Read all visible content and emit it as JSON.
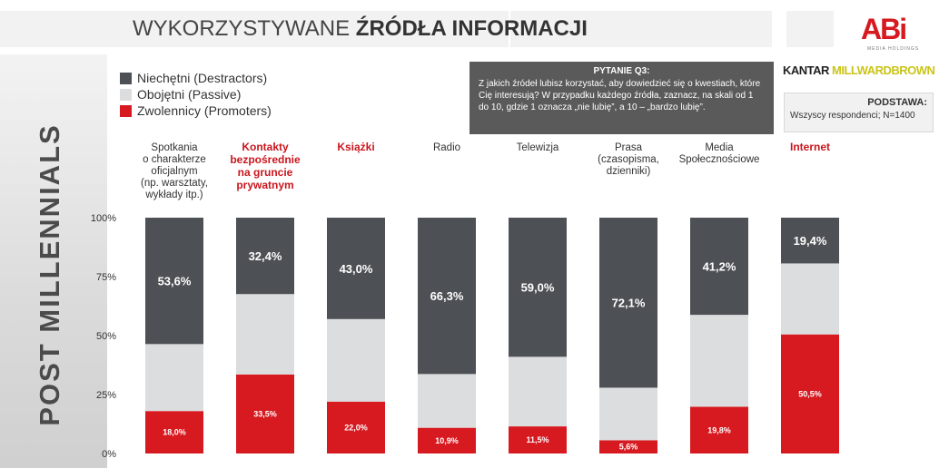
{
  "header": {
    "title_normal": "WYKORZYSTYWANE",
    "title_bold": "ŹRÓDŁA INFORMACJI"
  },
  "logos": {
    "abi": "ABi",
    "abi_sub": "MEDIA HOLDINGS",
    "kantar_a": "KANTAR",
    "kantar_b": "MILLWARDBROWN"
  },
  "side_label": "POST MILLENNIALS",
  "question": {
    "heading": "PYTANIE Q3:",
    "text": "Z jakich źródeł lubisz korzystać, aby dowiedzieć się o kwestiach, które Cię interesują? W przypadku każdego źródła, zaznacz, na skali od 1 do 10, gdzie 1 oznacza „nie lubię”, a 10 – „bardzo lubię”."
  },
  "base": {
    "heading": "PODSTAWA:",
    "text": "Wszyscy respondenci; N=1400"
  },
  "colors": {
    "destractors": "#4d5054",
    "passive": "#dcdddf",
    "promoters": "#d71920",
    "highlight_label": "#c8161d"
  },
  "chart_data": {
    "type": "bar",
    "stacked": true,
    "percent_scale": true,
    "categories": [
      "Spotkania o charakterze oficjalnym (np. warsztaty, wykłady itp.)",
      "Kontakty bezpośrednie na gruncie prywatnym",
      "Książki",
      "Radio",
      "Telewizja",
      "Prasa (czasopisma, dzienniki)",
      "Media Społecznościowe",
      "Internet"
    ],
    "category_lines": [
      [
        "Spotkania",
        "o charakterze",
        "oficjalnym",
        "(np. warsztaty,",
        "wykłady itp.)"
      ],
      [
        "Kontakty",
        "bezpośrednie",
        "na gruncie",
        "prywatnym"
      ],
      [
        "Książki"
      ],
      [
        "Radio"
      ],
      [
        "Telewizja"
      ],
      [
        "Prasa",
        "(czasopisma,",
        "dzienniki)"
      ],
      [
        "Media",
        "Społecznościowe"
      ],
      [
        "Internet"
      ]
    ],
    "highlighted_categories": [
      1,
      2,
      7
    ],
    "series": [
      {
        "name": "Niechętni (Destractors)",
        "values": [
          53.6,
          32.4,
          43.0,
          66.3,
          59.0,
          72.1,
          41.2,
          19.4
        ],
        "labels": [
          "53,6%",
          "32,4%",
          "43,0%",
          "66,3%",
          "59,0%",
          "72,1%",
          "41,2%",
          "19,4%"
        ]
      },
      {
        "name": "Obojętni (Passive)",
        "values": [
          28.4,
          34.1,
          35.0,
          22.8,
          29.5,
          22.3,
          39.0,
          30.1
        ],
        "labels": []
      },
      {
        "name": "Zwolennicy (Promoters)",
        "values": [
          18.0,
          33.5,
          22.0,
          10.9,
          11.5,
          5.6,
          19.8,
          50.5
        ],
        "labels": [
          "18,0%",
          "33,5%",
          "22,0%",
          "10,9%",
          "11,5%",
          "5,6%",
          "19,8%",
          "50,5%"
        ]
      }
    ],
    "yticks": [
      "100%",
      "75%",
      "50%",
      "25%",
      "0%"
    ],
    "ytick_values": [
      100,
      75,
      50,
      25,
      0
    ],
    "ylim": [
      0,
      100
    ],
    "legend_position": "top-left"
  }
}
